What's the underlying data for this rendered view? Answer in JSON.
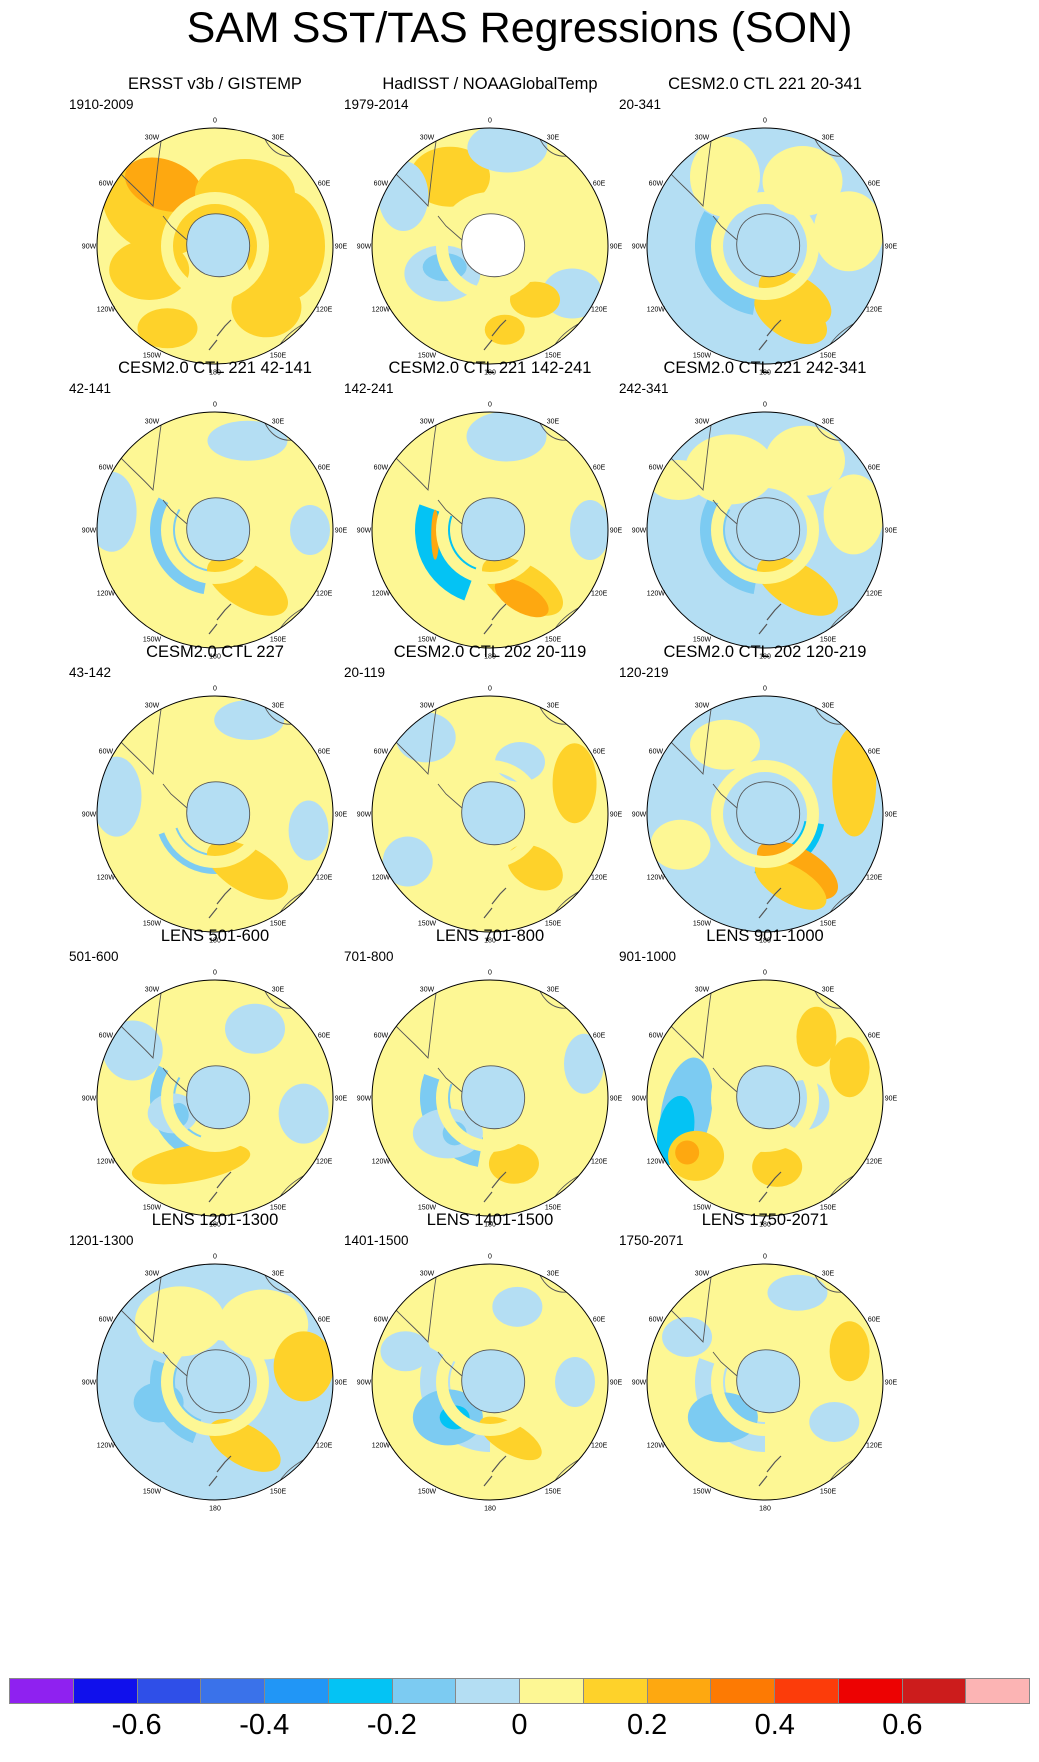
{
  "title": "SAM SST/TAS Regressions (SON)",
  "longitude_labels": [
    "0",
    "30E",
    "60E",
    "90E",
    "120E",
    "150E",
    "180",
    "150W",
    "120W",
    "90W",
    "60W",
    "30W"
  ],
  "panels": [
    {
      "title": "ERSST v3b / GISTEMP",
      "period": "1910-2009"
    },
    {
      "title": "HadISST / NOAAGlobalTemp",
      "period": "1979-2014"
    },
    {
      "title": "CESM2.0 CTL 221 20-341",
      "period": "20-341"
    },
    {
      "title": "CESM2.0 CTL 221 42-141",
      "period": "42-141"
    },
    {
      "title": "CESM2.0 CTL 221 142-241",
      "period": "142-241"
    },
    {
      "title": "CESM2.0 CTL 221 242-341",
      "period": "242-341"
    },
    {
      "title": "CESM2.0 CTL 227",
      "period": "43-142"
    },
    {
      "title": "CESM2.0 CTL 202 20-119",
      "period": "20-119"
    },
    {
      "title": "CESM2.0 CTL 202 120-219",
      "period": "120-219"
    },
    {
      "title": "LENS 501-600",
      "period": "501-600"
    },
    {
      "title": "LENS 701-800",
      "period": "701-800"
    },
    {
      "title": "LENS 901-1000",
      "period": "901-1000"
    },
    {
      "title": "LENS 1201-1300",
      "period": "1201-1300"
    },
    {
      "title": "LENS 1401-1500",
      "period": "1401-1500"
    },
    {
      "title": "LENS 1750-2071",
      "period": "1750-2071"
    }
  ],
  "colorbar": {
    "colors": [
      "#8f21f0",
      "#1010ec",
      "#2f4fe8",
      "#3a72ea",
      "#2196f6",
      "#04c3f4",
      "#7ccbf2",
      "#b4def3",
      "#fdf794",
      "#fed22a",
      "#fea810",
      "#fd7a03",
      "#fc3c0a",
      "#ed0202",
      "#cc1c1c",
      "#fcb4b4"
    ],
    "labels": [
      "-0.6",
      "-0.4",
      "-0.2",
      "0",
      "0.2",
      "0.4",
      "0.6"
    ]
  }
}
